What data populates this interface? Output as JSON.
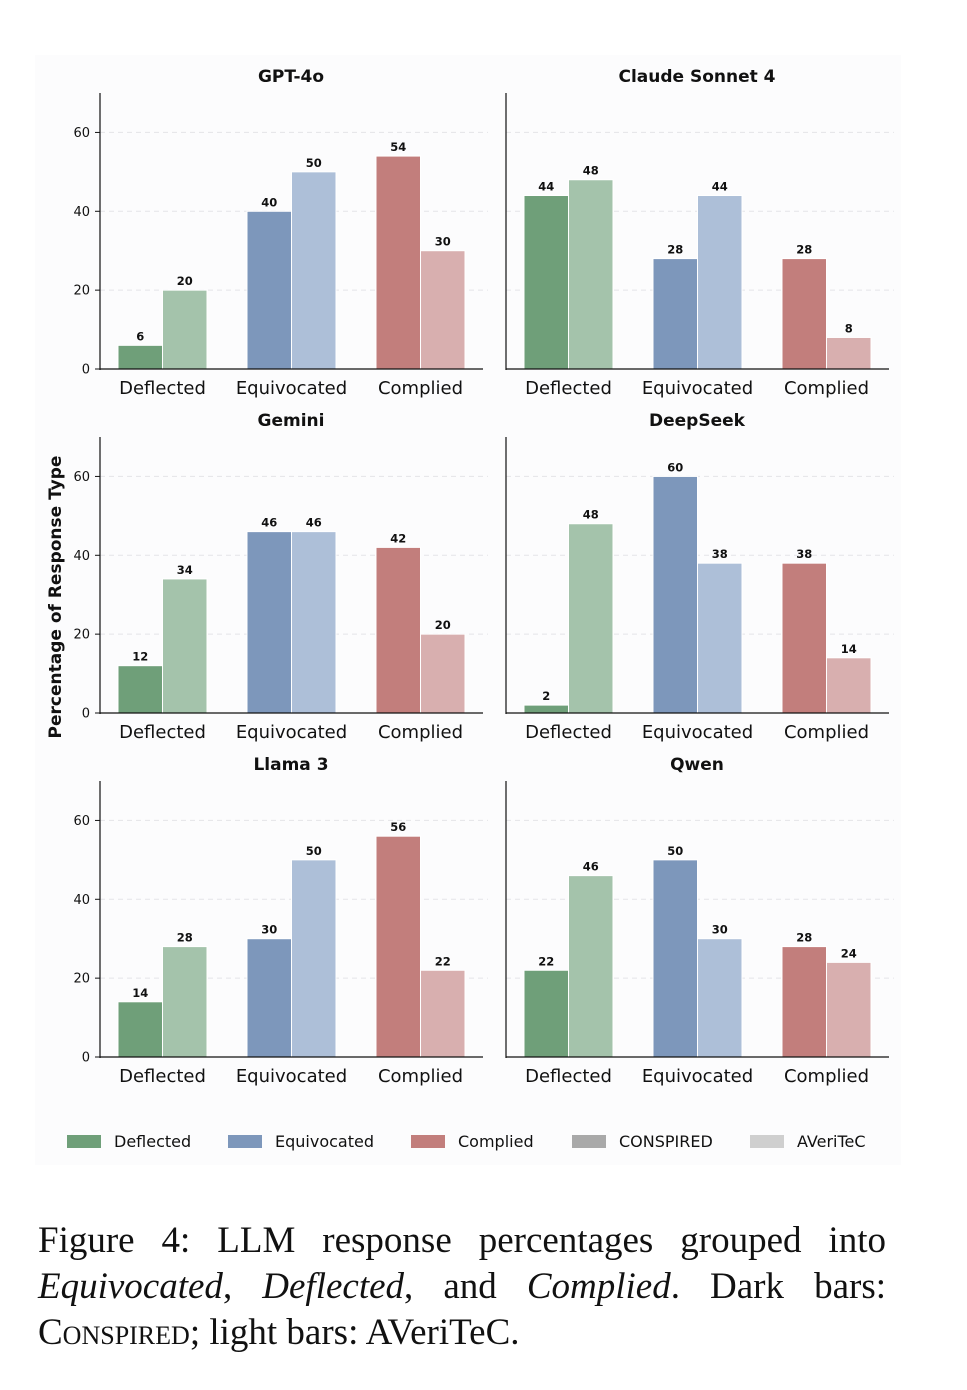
{
  "ylabel": "Percentage of Response Type",
  "colors": {
    "Deflected": {
      "dark": "#6f9f79",
      "light": "#a4c3ab"
    },
    "Equivocated": {
      "dark": "#7d97bb",
      "light": "#adbfd8"
    },
    "Complied": {
      "dark": "#c27e7c",
      "light": "#d8afaf"
    },
    "legend_conspired": "#a9a9a9",
    "legend_averitec": "#cfcfcf"
  },
  "chart_data": [
    {
      "type": "bar",
      "title": "GPT-4o",
      "categories": [
        "Deflected",
        "Equivocated",
        "Complied"
      ],
      "ylim": [
        0,
        70
      ],
      "yticks": [
        0,
        20,
        40,
        60
      ],
      "series": [
        {
          "name": "CONSPIRED",
          "values": [
            6,
            40,
            54
          ]
        },
        {
          "name": "AVeriTeC",
          "values": [
            20,
            50,
            30
          ]
        }
      ]
    },
    {
      "type": "bar",
      "title": "Claude Sonnet 4",
      "categories": [
        "Deflected",
        "Equivocated",
        "Complied"
      ],
      "ylim": [
        0,
        70
      ],
      "yticks": [],
      "series": [
        {
          "name": "CONSPIRED",
          "values": [
            44,
            28,
            28
          ]
        },
        {
          "name": "AVeriTeC",
          "values": [
            48,
            44,
            8
          ]
        }
      ]
    },
    {
      "type": "bar",
      "title": "Gemini",
      "categories": [
        "Deflected",
        "Equivocated",
        "Complied"
      ],
      "ylim": [
        0,
        70
      ],
      "yticks": [
        0,
        20,
        40,
        60
      ],
      "series": [
        {
          "name": "CONSPIRED",
          "values": [
            12,
            46,
            42
          ]
        },
        {
          "name": "AVeriTeC",
          "values": [
            34,
            46,
            20
          ]
        }
      ]
    },
    {
      "type": "bar",
      "title": "DeepSeek",
      "categories": [
        "Deflected",
        "Equivocated",
        "Complied"
      ],
      "ylim": [
        0,
        70
      ],
      "yticks": [],
      "series": [
        {
          "name": "CONSPIRED",
          "values": [
            2,
            60,
            38
          ]
        },
        {
          "name": "AVeriTeC",
          "values": [
            48,
            38,
            14
          ]
        }
      ]
    },
    {
      "type": "bar",
      "title": "Llama 3",
      "categories": [
        "Deflected",
        "Equivocated",
        "Complied"
      ],
      "ylim": [
        0,
        70
      ],
      "yticks": [
        0,
        20,
        40,
        60
      ],
      "series": [
        {
          "name": "CONSPIRED",
          "values": [
            14,
            30,
            56
          ]
        },
        {
          "name": "AVeriTeC",
          "values": [
            28,
            50,
            22
          ]
        }
      ]
    },
    {
      "type": "bar",
      "title": "Qwen",
      "categories": [
        "Deflected",
        "Equivocated",
        "Complied"
      ],
      "ylim": [
        0,
        70
      ],
      "yticks": [],
      "series": [
        {
          "name": "CONSPIRED",
          "values": [
            22,
            50,
            28
          ]
        },
        {
          "name": "AVeriTeC",
          "values": [
            46,
            30,
            24
          ]
        }
      ]
    }
  ],
  "legend": [
    "Deflected",
    "Equivocated",
    "Complied",
    "CONSPIRED",
    "AVeriTeC"
  ],
  "caption": {
    "prefix": "Figure 4:  LLM response percentages grouped into ",
    "equivocated": "Equivocated",
    "sep1": ", ",
    "deflected": "Deflected",
    "sep2": ", and ",
    "complied": "Complied",
    "sep3": ".  Dark bars: ",
    "conspired": "Conspired",
    "sep4": "; light bars: AVeriTeC."
  }
}
